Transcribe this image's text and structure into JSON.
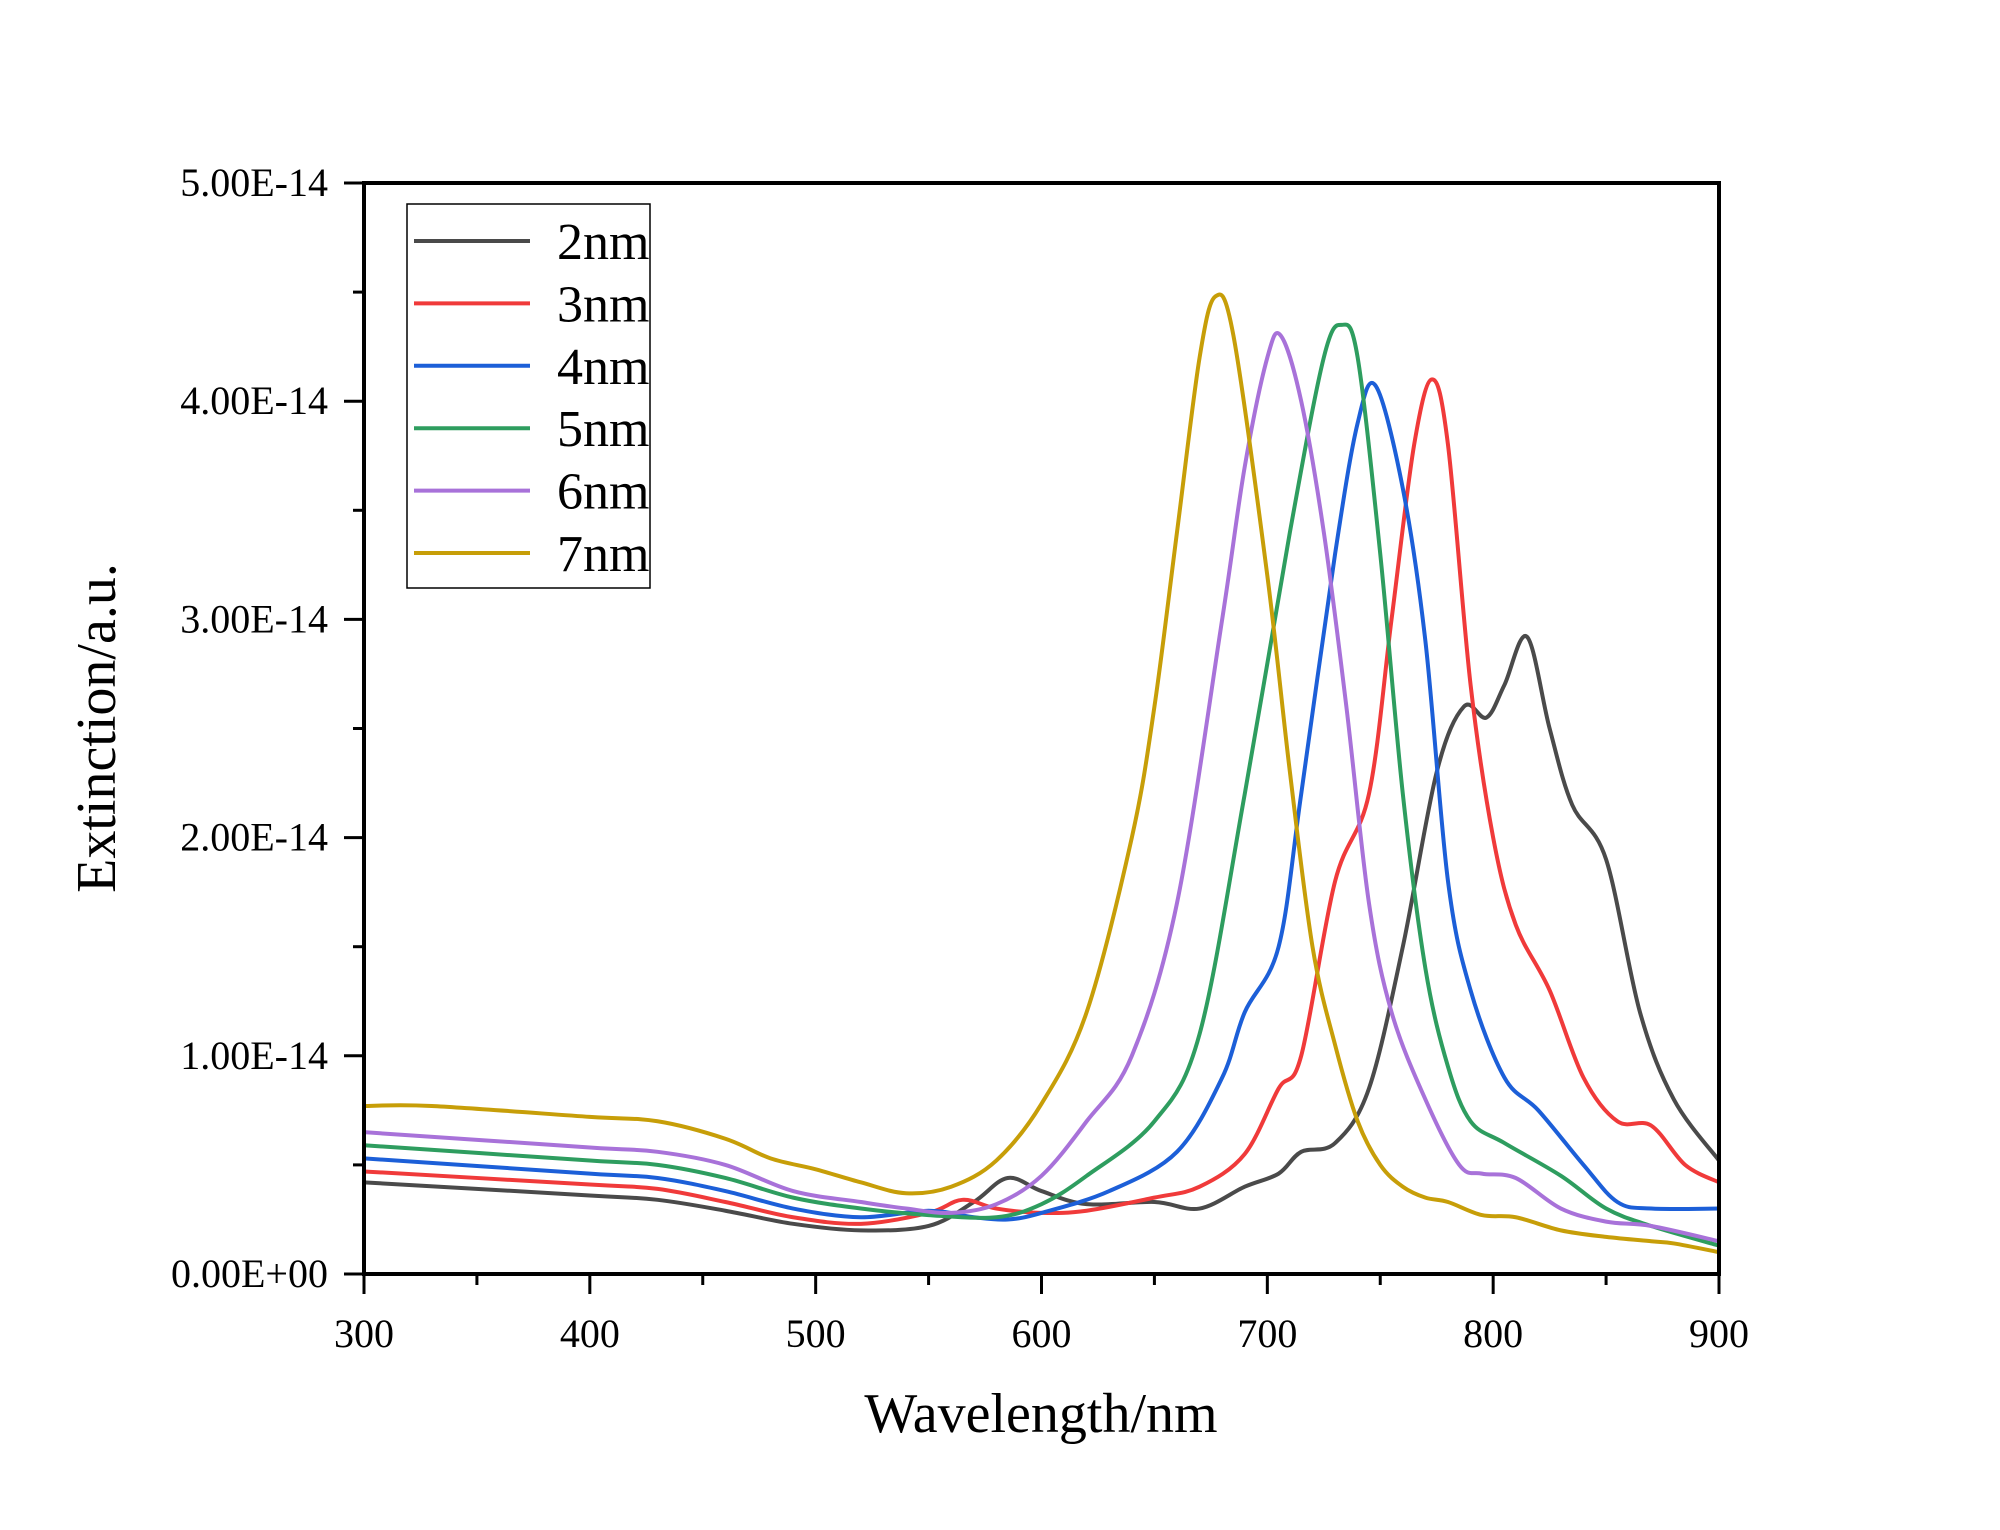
{
  "chart_data": {
    "type": "line",
    "title": "",
    "xlabel": "Wavelength/nm",
    "ylabel": "Extinction/a.u.",
    "xlim": [
      300,
      900
    ],
    "ylim": [
      0,
      5e-14
    ],
    "x_ticks": [
      "300",
      "400",
      "500",
      "600",
      "700",
      "800",
      "900"
    ],
    "y_ticks": [
      "0.00E+00",
      "1.00E-14",
      "2.00E-14",
      "3.00E-14",
      "4.00E-14",
      "5.00E-14"
    ],
    "grid": false,
    "legend_position": "top-left",
    "series": [
      {
        "name": "2nm",
        "color": "#4a4a4a",
        "x": [
          300,
          400,
          430,
          460,
          490,
          520,
          550,
          570,
          585,
          600,
          620,
          650,
          670,
          690,
          705,
          715,
          730,
          745,
          760,
          775,
          787,
          797,
          805,
          815,
          825,
          835,
          850,
          865,
          880,
          900
        ],
        "y": [
          4.2e-15,
          3.6e-15,
          3.4e-15,
          2.9e-15,
          2.3e-15,
          2e-15,
          2.2e-15,
          3.3e-15,
          4.4e-15,
          3.8e-15,
          3.2e-15,
          3.3e-15,
          3e-15,
          4e-15,
          4.6e-15,
          5.6e-15,
          6e-15,
          8.5e-15,
          1.5e-14,
          2.3e-14,
          2.6e-14,
          2.55e-14,
          2.7e-14,
          2.92e-14,
          2.5e-14,
          2.15e-14,
          1.9e-14,
          1.2e-14,
          8e-15,
          5.2e-15
        ]
      },
      {
        "name": "3nm",
        "color": "#f03a3a",
        "x": [
          300,
          400,
          430,
          460,
          490,
          520,
          550,
          565,
          580,
          600,
          620,
          650,
          670,
          690,
          705,
          715,
          730,
          745,
          755,
          765,
          773,
          780,
          790,
          800,
          810,
          825,
          840,
          855,
          870,
          885,
          900
        ],
        "y": [
          4.7e-15,
          4.1e-15,
          3.9e-15,
          3.3e-15,
          2.6e-15,
          2.3e-15,
          2.8e-15,
          3.4e-15,
          3e-15,
          2.8e-15,
          2.9e-15,
          3.5e-15,
          4e-15,
          5.5e-15,
          8.5e-15,
          1e-14,
          1.8e-14,
          2.2e-14,
          3e-14,
          3.8e-14,
          4.1e-14,
          3.8e-14,
          2.7e-14,
          2e-14,
          1.6e-14,
          1.3e-14,
          9e-15,
          7e-15,
          6.8e-15,
          5e-15,
          4.2e-15
        ]
      },
      {
        "name": "4nm",
        "color": "#1c5fd8",
        "x": [
          300,
          400,
          430,
          460,
          490,
          520,
          550,
          570,
          585,
          600,
          630,
          660,
          680,
          690,
          705,
          715,
          730,
          740,
          748,
          760,
          770,
          780,
          790,
          805,
          820,
          840,
          855,
          870,
          900
        ],
        "y": [
          5.3e-15,
          4.6e-15,
          4.4e-15,
          3.8e-15,
          3e-15,
          2.6e-15,
          2.9e-15,
          2.6e-15,
          2.5e-15,
          2.8e-15,
          3.8e-15,
          5.6e-15,
          9e-15,
          1.2e-14,
          1.5e-14,
          2.2e-14,
          3.3e-14,
          3.9e-14,
          4.07e-14,
          3.6e-14,
          2.9e-14,
          1.8e-14,
          1.3e-14,
          9e-15,
          7.5e-15,
          5e-15,
          3.3e-15,
          3e-15,
          3e-15
        ]
      },
      {
        "name": "5nm",
        "color": "#2e9d5f",
        "x": [
          300,
          400,
          430,
          460,
          490,
          520,
          550,
          580,
          600,
          620,
          650,
          670,
          690,
          710,
          725,
          733,
          740,
          750,
          760,
          770,
          780,
          790,
          805,
          830,
          850,
          870,
          900
        ],
        "y": [
          5.9e-15,
          5.2e-15,
          5e-15,
          4.4e-15,
          3.5e-15,
          3e-15,
          2.7e-15,
          2.6e-15,
          3.2e-15,
          4.5e-15,
          7e-15,
          1.1e-14,
          2.2e-14,
          3.4e-14,
          4.2e-14,
          4.35e-14,
          4.2e-14,
          3.3e-14,
          2.2e-14,
          1.4e-14,
          9.5e-15,
          7e-15,
          6e-15,
          4.5e-15,
          3e-15,
          2.2e-15,
          1.3e-15
        ]
      },
      {
        "name": "6nm",
        "color": "#a872d9",
        "x": [
          300,
          400,
          430,
          460,
          490,
          520,
          540,
          560,
          580,
          600,
          620,
          640,
          660,
          680,
          690,
          700,
          706,
          715,
          725,
          735,
          745,
          755,
          770,
          785,
          795,
          810,
          830,
          850,
          870,
          900
        ],
        "y": [
          6.5e-15,
          5.8e-15,
          5.6e-15,
          5e-15,
          3.8e-15,
          3.3e-15,
          3e-15,
          2.8e-15,
          3.2e-15,
          4.5e-15,
          7e-15,
          1e-14,
          1.7e-14,
          3e-14,
          3.7e-14,
          4.2e-14,
          4.3e-14,
          4e-14,
          3.4e-14,
          2.6e-14,
          1.7e-14,
          1.2e-14,
          8e-15,
          5e-15,
          4.6e-15,
          4.4e-15,
          3e-15,
          2.4e-15,
          2.2e-15,
          1.5e-15
        ]
      },
      {
        "name": "7nm",
        "color": "#c79e08",
        "x": [
          300,
          330,
          400,
          430,
          460,
          480,
          500,
          520,
          540,
          560,
          580,
          600,
          620,
          640,
          650,
          660,
          670,
          677,
          685,
          700,
          710,
          720,
          730,
          740,
          750,
          760,
          770,
          780,
          795,
          810,
          830,
          850,
          870,
          880,
          900
        ],
        "y": [
          7.7e-15,
          7.7e-15,
          7.2e-15,
          7e-15,
          6.2e-15,
          5.3e-15,
          4.8e-15,
          4.2e-15,
          3.7e-15,
          4e-15,
          5.2e-15,
          7.8e-15,
          1.2e-14,
          2e-14,
          2.6e-14,
          3.4e-14,
          4.2e-14,
          4.48e-14,
          4.3e-14,
          3.2e-14,
          2.3e-14,
          1.5e-14,
          1.05e-14,
          7e-15,
          5e-15,
          4e-15,
          3.5e-15,
          3.3e-15,
          2.7e-15,
          2.6e-15,
          2e-15,
          1.7e-15,
          1.5e-15,
          1.4e-15,
          1e-15
        ]
      }
    ]
  }
}
